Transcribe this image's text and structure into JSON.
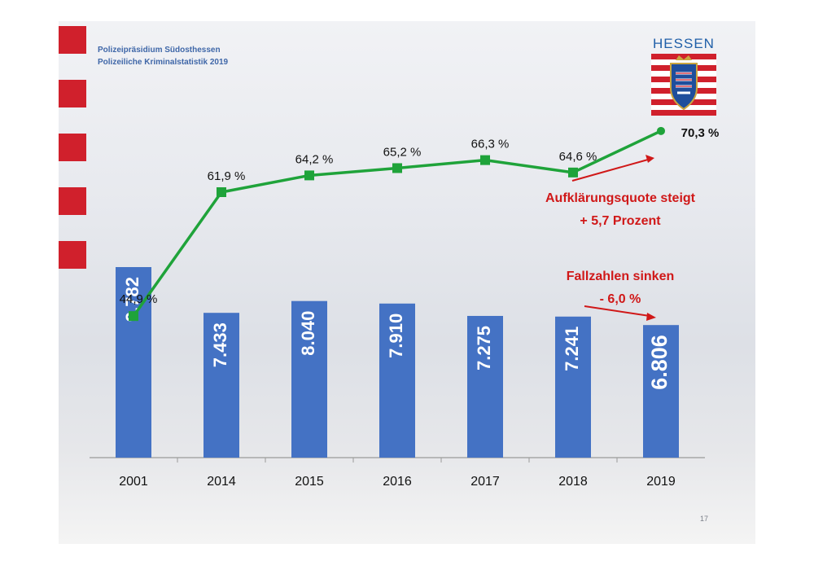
{
  "header": {
    "line1": "Polizeipräsidium Südosthessen",
    "line2": "Polizeiliche Kriminalstatistik 2019"
  },
  "logo": {
    "text": "HESSEN"
  },
  "page_number": "17",
  "colors": {
    "bar": "#4472c4",
    "line": "#1fa33a",
    "annotation": "#d01818",
    "square": "#d0202c"
  },
  "chart_data": {
    "type": "bar",
    "categories": [
      "2001",
      "2014",
      "2015",
      "2016",
      "2017",
      "2018",
      "2019"
    ],
    "series": [
      {
        "type": "bar",
        "values": [
          9782,
          7433,
          8040,
          7910,
          7275,
          7241,
          6806
        ],
        "labels": [
          "9.782",
          "7.433",
          "8.040",
          "7.910",
          "7.275",
          "7.241",
          "6.806"
        ]
      },
      {
        "type": "line",
        "values": [
          44.9,
          61.9,
          64.2,
          65.2,
          66.3,
          64.6,
          70.3
        ],
        "labels": [
          "44,9 %",
          "61,9 %",
          "64,2 %",
          "65,2 %",
          "66,3 %",
          "64,6 %",
          "70,3 %"
        ]
      }
    ],
    "annotations": {
      "rate_line1": "Aufklärungsquote steigt",
      "rate_line2": "+ 5,7 Prozent",
      "cases_line1": "Fallzahlen sinken",
      "cases_line2": "- 6,0 %"
    }
  }
}
